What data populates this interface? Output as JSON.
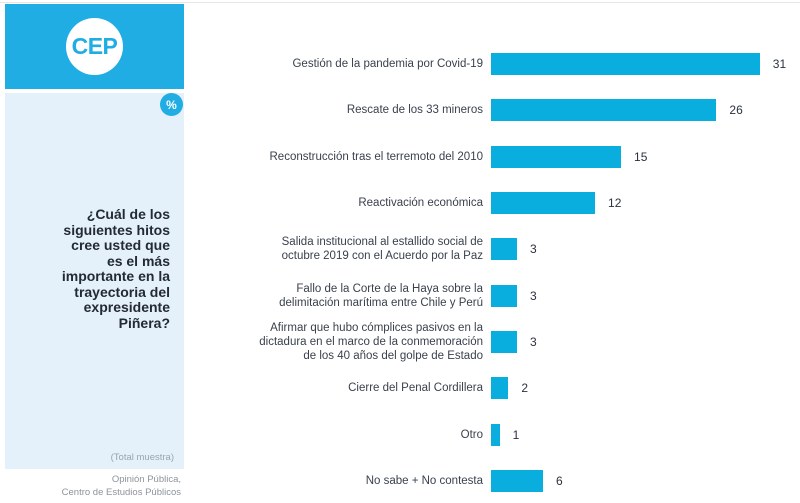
{
  "brand": {
    "logo_text": "CEP",
    "percent_badge": "%"
  },
  "sidebar": {
    "question": "¿Cuál de los\nsiguientes hitos\ncree usted que\nes el más\nimportante en la\ntrayectoria del\nexpresidente\nPiñera?",
    "total_label": "(Total muestra)"
  },
  "footer": {
    "credit": "Opinión Pública,\nCentro de Estudios Públicos"
  },
  "colors": {
    "accent": "#1FADE4",
    "bar": "#09AEDE",
    "sidebar_bg": "#E4F1FB"
  },
  "chart_data": {
    "type": "bar",
    "orientation": "horizontal",
    "unit": "%",
    "title": "",
    "xlabel": "",
    "ylabel": "",
    "xlim": [
      0,
      35
    ],
    "grid": false,
    "legend": false,
    "categories": [
      "Gestión de la pandemia por Covid-19",
      "Rescate de los 33 mineros",
      "Reconstrucción tras el terremoto del 2010",
      "Reactivación económica",
      "Salida institucional al estallido social de\noctubre 2019 con el Acuerdo por la Paz",
      "Fallo de la Corte de la Haya sobre la\ndelimitación marítima entre Chile y Perú",
      "Afirmar que hubo cómplices pasivos en la\ndictadura en el marco de la conmemoración\nde los 40 años del golpe de Estado",
      "Cierre del Penal Cordillera",
      "Otro",
      "No sabe + No contesta"
    ],
    "values": [
      31,
      26,
      15,
      12,
      3,
      3,
      3,
      2,
      1,
      6
    ]
  }
}
